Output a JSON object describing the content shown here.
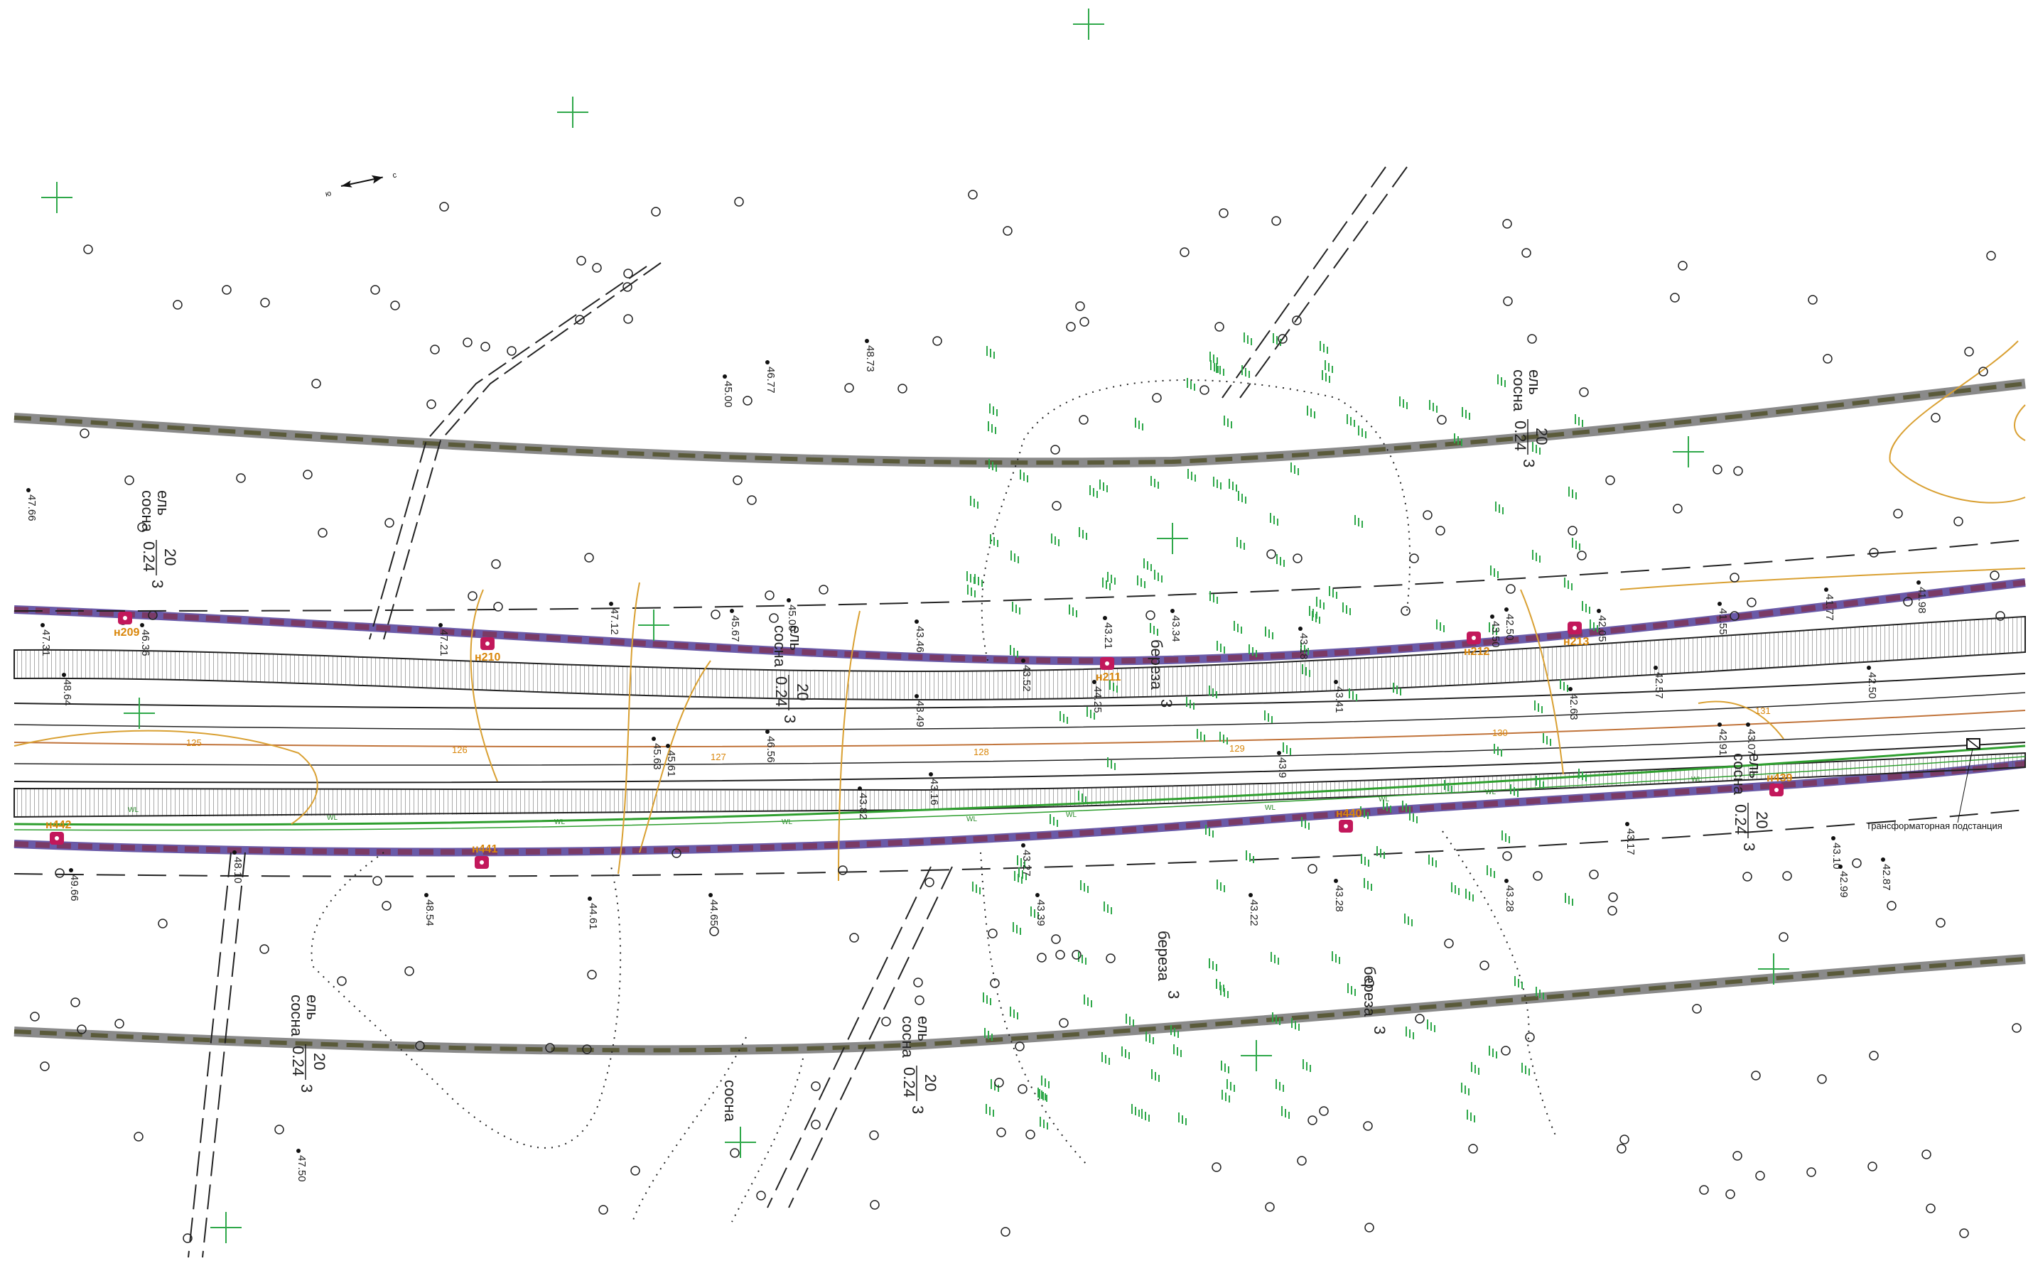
{
  "map": {
    "colors": {
      "background": "#ffffff",
      "boundary_outer": "#8a8a8a",
      "boundary_red": "#7a3a66",
      "boundary_blue": "#6a5aa8",
      "point_marker": "#c2185b",
      "point_label": "#d9860a",
      "contour": "#d9a032",
      "watermain": "#2e9e2e",
      "vegetation": "#2fa84a",
      "grid_cross": "#2fa84a",
      "road": "#222222"
    },
    "north_arrow": {
      "south": "ю",
      "north": "с",
      "icon": "north-arrow-icon"
    },
    "points": [
      {
        "label": "н209"
      },
      {
        "label": "н210"
      },
      {
        "label": "н211"
      },
      {
        "label": "н212"
      },
      {
        "label": "н213"
      },
      {
        "label": "н442"
      },
      {
        "label": "н441"
      },
      {
        "label": "н440"
      },
      {
        "label": "н439"
      }
    ],
    "elevations": [
      "47.66",
      "47.31",
      "46.36",
      "45.67",
      "45.00",
      "43.46",
      "43.21",
      "43.34",
      "43.18",
      "43.41",
      "43.50",
      "42.50",
      "42.05",
      "41.55",
      "41.77",
      "41.98",
      "42.50",
      "42.57",
      "42.63",
      "42.91",
      "43.07",
      "43.10",
      "42.99",
      "42.87",
      "43.28",
      "43.28",
      "43.22",
      "43.39",
      "43.27",
      "43.9",
      "44.65",
      "44.61",
      "45.61",
      "47.50",
      "47.12",
      "46.77",
      "45.00",
      "48.73",
      "48.64",
      "48.54",
      "49.66",
      "48.10",
      "43.17",
      "44.25",
      "43.49",
      "43.16",
      "43.82",
      "43.52",
      "47.21",
      "46.56",
      "45.63"
    ],
    "vegetation_labels": [
      {
        "species": "сосна",
        "species2": "ель",
        "num": "20",
        "den": "0.24",
        "suffix": "3"
      },
      {
        "species": "сосна",
        "species2": "ель",
        "num": "20",
        "den": "0.24",
        "suffix": "3"
      },
      {
        "species": "сосна",
        "species2": "ель",
        "num": "20",
        "den": "0.24",
        "suffix": "3"
      },
      {
        "species": "сосна",
        "species2": "ель",
        "num": "20",
        "den": "0.24",
        "suffix": "3"
      },
      {
        "species": "сосна",
        "species2": "ель",
        "num": "20",
        "den": "0.24",
        "suffix": "3"
      },
      {
        "species": "сосна",
        "species2": "ель",
        "num": "20",
        "den": "0.24",
        "suffix": "3"
      },
      {
        "species": "береза",
        "species2": "",
        "num": "",
        "den": "",
        "suffix": "3"
      },
      {
        "species": "береза",
        "species2": "",
        "num": "",
        "den": "",
        "suffix": "3"
      },
      {
        "species": "береза",
        "species2": "",
        "num": "",
        "den": "",
        "suffix": "3"
      },
      {
        "species": "сосна",
        "species2": "",
        "num": "",
        "den": "",
        "suffix": ""
      }
    ],
    "substation_label": "Трансформаторная подстанция",
    "wl_label": "WL",
    "contour_labels": [
      "125",
      "126",
      "127",
      "128",
      "129",
      "130",
      "131"
    ]
  }
}
